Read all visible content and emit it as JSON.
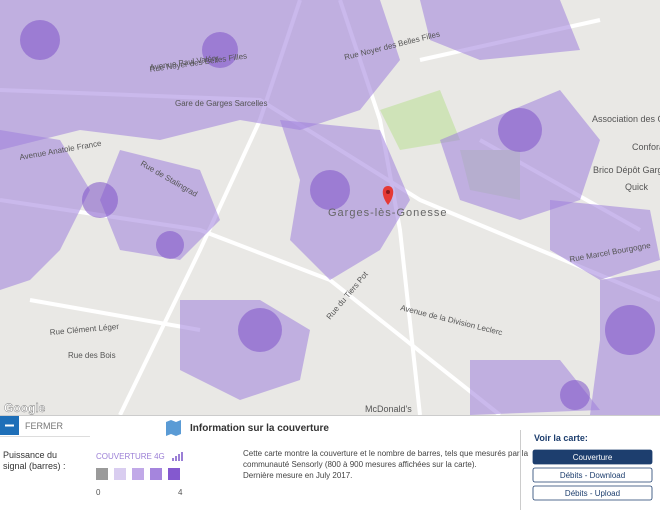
{
  "map": {
    "attribution": "Google",
    "place": "Garges-lès-Gonesse",
    "labels": [
      "Gare de Garges Sarcelles",
      "Rue Noyer des Belles Filles",
      "Avenue Paul Valéry",
      "Rue de Stalingrad",
      "Avenue de la Division Leclerc",
      "Rue Marcel Bourgogne",
      "Rue Clément Léger",
      "Rue des Bois",
      "Rue du Tiers Pot",
      "Avenue Anatole France"
    ],
    "pois": [
      "McDonald's",
      "Association des Commerçants Cora...",
      "Brico Dépôt Garges",
      "Quick",
      "Conforama"
    ]
  },
  "panel": {
    "close": "FERMER",
    "title": "Information sur la couverture",
    "signal_label": [
      "Puissance du",
      "signal (barres) :"
    ],
    "legend": {
      "label": "COUVERTURE 4G",
      "min": "0",
      "max": "4",
      "colors": [
        "#9a9a9a",
        "#d9cdf0",
        "#c1a9e8",
        "#a585dd",
        "#8459cf"
      ]
    },
    "description": [
      "Cette carte montre la couverture et le nombre de barres, tels que mesurés par la",
      "communauté Sensorly (800 à 900 mesures affichées sur la carte).",
      "Dernière mesure en July 2017."
    ],
    "view_title": "Voir la carte:",
    "buttons": [
      "Couverture",
      "Débits - Download",
      "Débits - Upload"
    ]
  }
}
